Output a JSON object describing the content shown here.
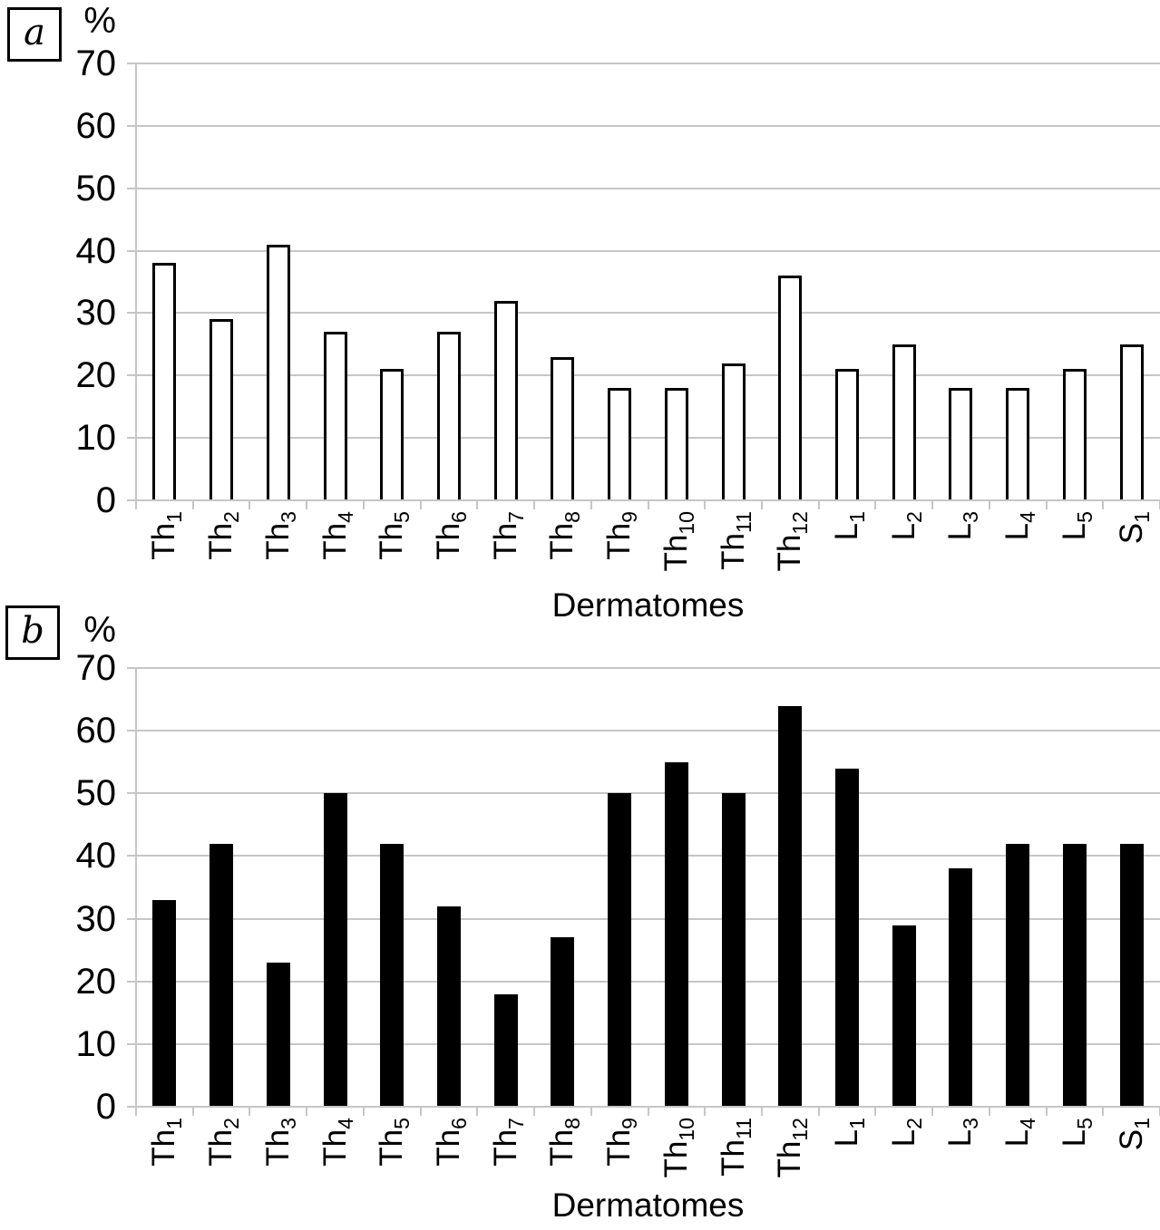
{
  "chart_data": [
    {
      "type": "bar",
      "panel_label": "a",
      "title": "",
      "xlabel": "Dermatomes",
      "ylabel": "%",
      "ylim": [
        0,
        70
      ],
      "yticks": [
        0,
        10,
        20,
        30,
        40,
        50,
        60,
        70
      ],
      "grid": true,
      "legend": false,
      "bar_style": "outline",
      "bar_fill": "#ffffff",
      "bar_border": "#000000",
      "gridline_color": "#c6c6c6",
      "categories": [
        {
          "t": "Th",
          "s": "1"
        },
        {
          "t": "Th",
          "s": "2"
        },
        {
          "t": "Th",
          "s": "3"
        },
        {
          "t": "Th",
          "s": "4"
        },
        {
          "t": "Th",
          "s": "5"
        },
        {
          "t": "Th",
          "s": "6"
        },
        {
          "t": "Th",
          "s": "7"
        },
        {
          "t": "Th",
          "s": "8"
        },
        {
          "t": "Th",
          "s": "9"
        },
        {
          "t": "Th",
          "s": "10"
        },
        {
          "t": "Th",
          "s": "11"
        },
        {
          "t": "Th",
          "s": "12"
        },
        {
          "t": "L",
          "s": "1"
        },
        {
          "t": "L",
          "s": "2"
        },
        {
          "t": "L",
          "s": "3"
        },
        {
          "t": "L",
          "s": "4"
        },
        {
          "t": "L",
          "s": "5"
        },
        {
          "t": "S",
          "s": "1"
        }
      ],
      "values": [
        38,
        29,
        41,
        27,
        21,
        27,
        32,
        23,
        18,
        18,
        22,
        36,
        21,
        25,
        18,
        18,
        21,
        25
      ]
    },
    {
      "type": "bar",
      "panel_label": "b",
      "title": "",
      "xlabel": "Dermatomes",
      "ylabel": "%",
      "ylim": [
        0,
        70
      ],
      "yticks": [
        0,
        10,
        20,
        30,
        40,
        50,
        60,
        70
      ],
      "grid": true,
      "legend": false,
      "bar_style": "solid",
      "bar_fill": "#000000",
      "bar_border": "#000000",
      "gridline_color": "#c6c6c6",
      "categories": [
        {
          "t": "Th",
          "s": "1"
        },
        {
          "t": "Th",
          "s": "2"
        },
        {
          "t": "Th",
          "s": "3"
        },
        {
          "t": "Th",
          "s": "4"
        },
        {
          "t": "Th",
          "s": "5"
        },
        {
          "t": "Th",
          "s": "6"
        },
        {
          "t": "Th",
          "s": "7"
        },
        {
          "t": "Th",
          "s": "8"
        },
        {
          "t": "Th",
          "s": "9"
        },
        {
          "t": "Th",
          "s": "10"
        },
        {
          "t": "Th",
          "s": "11"
        },
        {
          "t": "Th",
          "s": "12"
        },
        {
          "t": "L",
          "s": "1"
        },
        {
          "t": "L",
          "s": "2"
        },
        {
          "t": "L",
          "s": "3"
        },
        {
          "t": "L",
          "s": "4"
        },
        {
          "t": "L",
          "s": "5"
        },
        {
          "t": "S",
          "s": "1"
        }
      ],
      "values": [
        33,
        42,
        23,
        50,
        42,
        32,
        18,
        27,
        50,
        55,
        50,
        64,
        54,
        29,
        38,
        42,
        42,
        42
      ]
    }
  ]
}
